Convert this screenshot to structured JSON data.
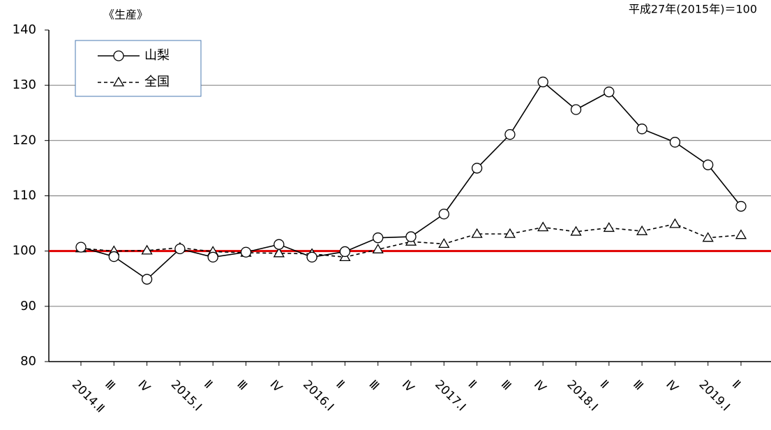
{
  "chart_data": {
    "type": "line",
    "title": "《生産》",
    "subtitle": "平成27年(2015年)＝100",
    "categories": [
      "2014.Ⅱ",
      "Ⅲ",
      "Ⅳ",
      "2015.Ⅰ",
      "Ⅱ",
      "Ⅲ",
      "Ⅳ",
      "2016.Ⅰ",
      "Ⅱ",
      "Ⅲ",
      "Ⅳ",
      "2017.Ⅰ",
      "Ⅱ",
      "Ⅲ",
      "Ⅳ",
      "2018.Ⅰ",
      "Ⅱ",
      "Ⅲ",
      "Ⅳ",
      "2019.Ⅰ",
      "Ⅱ"
    ],
    "series": [
      {
        "name": "山梨",
        "color": "#000000",
        "marker": "circle",
        "dash": "solid",
        "values": [
          100.7,
          99.0,
          94.9,
          100.4,
          98.9,
          99.8,
          101.2,
          98.9,
          99.9,
          102.4,
          102.6,
          106.7,
          115.0,
          121.1,
          130.6,
          125.6,
          128.8,
          122.1,
          119.7,
          115.6,
          108.1
        ]
      },
      {
        "name": "全国",
        "color": "#000000",
        "marker": "triangle",
        "dash": "dashed",
        "values": [
          100.5,
          100.0,
          100.1,
          100.6,
          99.9,
          99.7,
          99.6,
          99.5,
          98.9,
          100.3,
          101.7,
          101.3,
          103.1,
          103.1,
          104.3,
          103.5,
          104.2,
          103.6,
          104.9,
          102.4,
          102.9
        ]
      }
    ],
    "reference_line": {
      "value": 100,
      "color": "#e00000"
    },
    "ylim": [
      80,
      140
    ],
    "yticks": [
      80,
      90,
      100,
      110,
      120,
      130,
      140
    ],
    "grid": true,
    "legend": "top-left"
  }
}
